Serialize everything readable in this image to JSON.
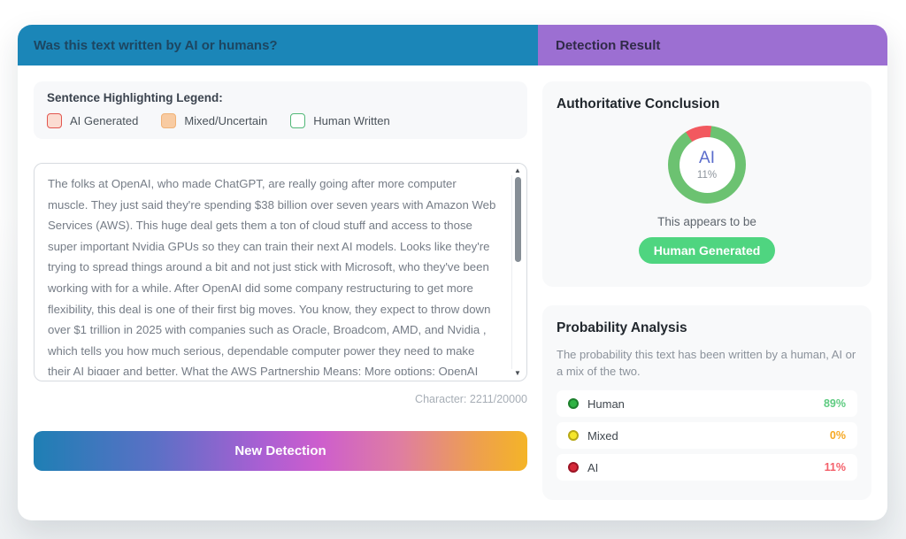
{
  "left": {
    "header": "Was this text written by AI or humans?",
    "legend": {
      "title": "Sentence Highlighting Legend:",
      "items": [
        {
          "label": "AI Generated",
          "fill": "#fbdcd2",
          "border": "#e2564f"
        },
        {
          "label": "Mixed/Uncertain",
          "fill": "#f8cba2",
          "border": "#f0b277"
        },
        {
          "label": "Human Written",
          "fill": "#ffffff",
          "border": "#52b878"
        }
      ]
    },
    "text": "The folks at OpenAI, who made ChatGPT, are really going after more computer muscle. They just said they're spending $38 billion over seven years with Amazon Web Services (AWS). This huge deal gets them a ton of cloud stuff and access to those super important Nvidia GPUs so they can train their next AI models. Looks like they're trying to spread things around a bit and not just stick with Microsoft, who they've been working with for a while. After OpenAI did some company restructuring to get more flexibility, this deal is one of their first big moves. You know, they expect to throw down over $1 trillion in 2025 with companies such as Oracle, Broadcom, AMD, and Nvidia , which tells you how much serious, dependable computer power they need to make their AI bigger and better. What the AWS Partnership Means: More options: OpenAI isn't just relying on Microsoft anymore, who had an exclusive cloud deal with them",
    "char_count": "Character: 2211/20000",
    "button_label": "New Detection"
  },
  "right": {
    "header": "Detection Result",
    "conclusion": {
      "title": "Authoritative Conclusion",
      "donut_label": "AI",
      "donut_value": "11%",
      "ai_percent": 11,
      "human_percent": 89,
      "appears_text": "This appears to be",
      "badge": "Human Generated",
      "ring_green": "#6cc271",
      "ring_red": "#f2595f",
      "badge_color": "#4fd580"
    },
    "probability": {
      "title": "Probability Analysis",
      "description": "The probability this text has been written by a human, AI or a mix of the two.",
      "rows": [
        {
          "label": "Human",
          "value": "89%",
          "dot_color": "#2fb344",
          "value_color": "#5ecb81"
        },
        {
          "label": "Mixed",
          "value": "0%",
          "dot_color": "#f5e62a",
          "value_color": "#f6a823"
        },
        {
          "label": "AI",
          "value": "11%",
          "dot_color": "#d62839",
          "value_color": "#f4606a"
        }
      ]
    }
  },
  "colors": {
    "header_left_bg": "#1b86b8",
    "header_right_bg": "#9c6fd2",
    "button_gradient": [
      "#1e7fb4",
      "#a95fd3",
      "#cd5ecd",
      "#f4b427"
    ]
  }
}
